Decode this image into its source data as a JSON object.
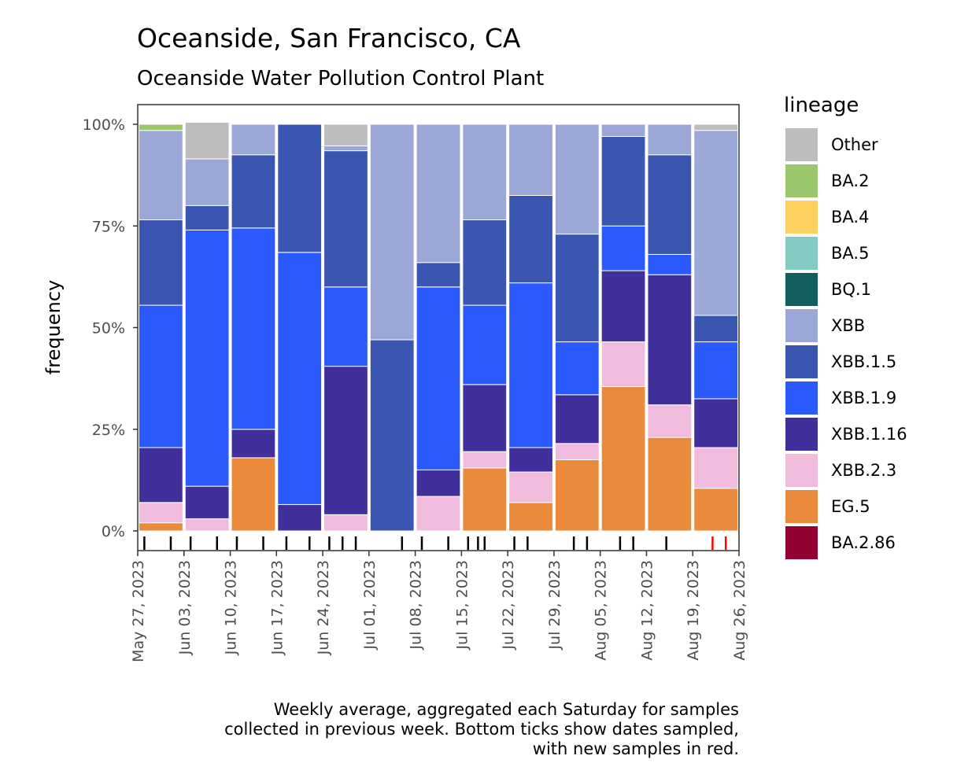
{
  "chart_data": {
    "type": "bar",
    "stacked": true,
    "title": "Oceanside, San Francisco, CA",
    "subtitle": "Oceanside Water Pollution Control Plant",
    "ylabel": "frequency",
    "xlabel": "",
    "ylim": [
      0,
      1
    ],
    "yticks": [
      {
        "value": 0,
        "label": "0%"
      },
      {
        "value": 0.25,
        "label": "25%"
      },
      {
        "value": 0.5,
        "label": "50%"
      },
      {
        "value": 0.75,
        "label": "75%"
      },
      {
        "value": 1,
        "label": "100%"
      }
    ],
    "x_domain_days": [
      0,
      91
    ],
    "xticks": [
      {
        "day": 0,
        "label": "May 27, 2023"
      },
      {
        "day": 7,
        "label": "Jun 03, 2023"
      },
      {
        "day": 14,
        "label": "Jun 10, 2023"
      },
      {
        "day": 21,
        "label": "Jun 17, 2023"
      },
      {
        "day": 28,
        "label": "Jun 24, 2023"
      },
      {
        "day": 35,
        "label": "Jul 01, 2023"
      },
      {
        "day": 42,
        "label": "Jul 08, 2023"
      },
      {
        "day": 49,
        "label": "Jul 15, 2023"
      },
      {
        "day": 56,
        "label": "Jul 22, 2023"
      },
      {
        "day": 63,
        "label": "Jul 29, 2023"
      },
      {
        "day": 70,
        "label": "Aug 05, 2023"
      },
      {
        "day": 77,
        "label": "Aug 12, 2023"
      },
      {
        "day": 84,
        "label": "Aug 19, 2023"
      },
      {
        "day": 91,
        "label": "Aug 26, 2023"
      }
    ],
    "legend": {
      "title": "lineage",
      "position": "right",
      "items": [
        {
          "name": "Other",
          "color": "#bdbdbd"
        },
        {
          "name": "BA.2",
          "color": "#9cc66b"
        },
        {
          "name": "BA.4",
          "color": "#fdd160"
        },
        {
          "name": "BA.5",
          "color": "#83cac2"
        },
        {
          "name": "BQ.1",
          "color": "#135e5e"
        },
        {
          "name": "XBB",
          "color": "#9ba8d7"
        },
        {
          "name": "XBB.1.5",
          "color": "#3b56b1"
        },
        {
          "name": "XBB.1.9",
          "color": "#2b5afc"
        },
        {
          "name": "XBB.1.16",
          "color": "#41309b"
        },
        {
          "name": "XBB.2.3",
          "color": "#f0bbdc"
        },
        {
          "name": "EG.5",
          "color": "#ea8a3a"
        },
        {
          "name": "BA.2.86",
          "color": "#920132"
        }
      ]
    },
    "stack_order_bottom_to_top": [
      "EG.5",
      "XBB.2.3",
      "XBB.1.16",
      "XBB.1.9",
      "XBB.1.5",
      "XBB",
      "BA.5",
      "BA.4",
      "BA.2",
      "Other"
    ],
    "bars": [
      {
        "start_day": 0,
        "end_day": 7,
        "values": {
          "EG.5": 0.02,
          "XBB.2.3": 0.05,
          "XBB.1.16": 0.135,
          "XBB.1.9": 0.35,
          "XBB.1.5": 0.21,
          "XBB": 0.22,
          "BA.2": 0.015
        }
      },
      {
        "start_day": 7,
        "end_day": 14,
        "values": {
          "XBB.2.3": 0.03,
          "XBB.1.16": 0.08,
          "XBB.1.9": 0.63,
          "XBB.1.5": 0.06,
          "XBB": 0.115,
          "Other": 0.09
        }
      },
      {
        "start_day": 14,
        "end_day": 21,
        "values": {
          "EG.5": 0.18,
          "XBB.1.16": 0.07,
          "XBB.1.9": 0.495,
          "XBB.1.5": 0.18,
          "XBB": 0.075
        }
      },
      {
        "start_day": 21,
        "end_day": 28,
        "values": {
          "XBB.1.16": 0.065,
          "XBB.1.9": 0.62,
          "XBB.1.5": 0.315
        }
      },
      {
        "start_day": 28,
        "end_day": 35,
        "values": {
          "XBB.2.3": 0.04,
          "XBB.1.16": 0.365,
          "XBB.1.9": 0.195,
          "XBB.1.5": 0.335,
          "XBB": 0.012,
          "Other": 0.053
        }
      },
      {
        "start_day": 35,
        "end_day": 42,
        "values": {
          "XBB.1.5": 0.47,
          "XBB": 0.53
        }
      },
      {
        "start_day": 42,
        "end_day": 49,
        "values": {
          "XBB.2.3": 0.085,
          "XBB.1.16": 0.065,
          "XBB.1.9": 0.45,
          "XBB.1.5": 0.06,
          "XBB": 0.34
        }
      },
      {
        "start_day": 49,
        "end_day": 56,
        "values": {
          "EG.5": 0.155,
          "XBB.2.3": 0.04,
          "XBB.1.16": 0.165,
          "XBB.1.9": 0.195,
          "XBB.1.5": 0.21,
          "XBB": 0.235
        }
      },
      {
        "start_day": 56,
        "end_day": 63,
        "values": {
          "EG.5": 0.07,
          "XBB.2.3": 0.075,
          "XBB.1.16": 0.06,
          "XBB.1.9": 0.405,
          "XBB.1.5": 0.215,
          "XBB": 0.175
        }
      },
      {
        "start_day": 63,
        "end_day": 70,
        "values": {
          "EG.5": 0.175,
          "XBB.2.3": 0.04,
          "XBB.1.16": 0.12,
          "XBB.1.9": 0.13,
          "XBB.1.5": 0.265,
          "XBB": 0.27
        }
      },
      {
        "start_day": 70,
        "end_day": 77,
        "values": {
          "EG.5": 0.355,
          "XBB.2.3": 0.11,
          "XBB.1.16": 0.175,
          "XBB.1.9": 0.11,
          "XBB.1.5": 0.22,
          "XBB": 0.03
        }
      },
      {
        "start_day": 77,
        "end_day": 84,
        "values": {
          "EG.5": 0.23,
          "XBB.2.3": 0.08,
          "XBB.1.16": 0.32,
          "XBB.1.9": 0.05,
          "XBB.1.5": 0.245,
          "XBB": 0.075
        }
      },
      {
        "start_day": 84,
        "end_day": 91,
        "values": {
          "EG.5": 0.105,
          "XBB.2.3": 0.1,
          "XBB.1.16": 0.12,
          "XBB.1.9": 0.14,
          "XBB.1.5": 0.065,
          "XBB": 0.455,
          "Other": 0.015
        }
      }
    ],
    "sample_days": [
      {
        "day": 1,
        "new": false
      },
      {
        "day": 5,
        "new": false
      },
      {
        "day": 8,
        "new": false
      },
      {
        "day": 12,
        "new": false
      },
      {
        "day": 15,
        "new": false
      },
      {
        "day": 19,
        "new": false
      },
      {
        "day": 22.5,
        "new": false
      },
      {
        "day": 26,
        "new": false
      },
      {
        "day": 29,
        "new": false
      },
      {
        "day": 31,
        "new": false
      },
      {
        "day": 33,
        "new": false
      },
      {
        "day": 40,
        "new": false
      },
      {
        "day": 43,
        "new": false
      },
      {
        "day": 47,
        "new": false
      },
      {
        "day": 50,
        "new": false
      },
      {
        "day": 51.5,
        "new": false
      },
      {
        "day": 52.5,
        "new": false
      },
      {
        "day": 57,
        "new": false
      },
      {
        "day": 59,
        "new": false
      },
      {
        "day": 66,
        "new": false
      },
      {
        "day": 68,
        "new": false
      },
      {
        "day": 73,
        "new": false
      },
      {
        "day": 75,
        "new": false
      },
      {
        "day": 80,
        "new": false
      },
      {
        "day": 87,
        "new": true
      },
      {
        "day": 89,
        "new": true
      }
    ],
    "caption": [
      "Weekly average, aggregated each Saturday for samples",
      "collected in previous week. Bottom ticks show dates sampled,",
      "with new samples in red."
    ],
    "grid": false
  }
}
